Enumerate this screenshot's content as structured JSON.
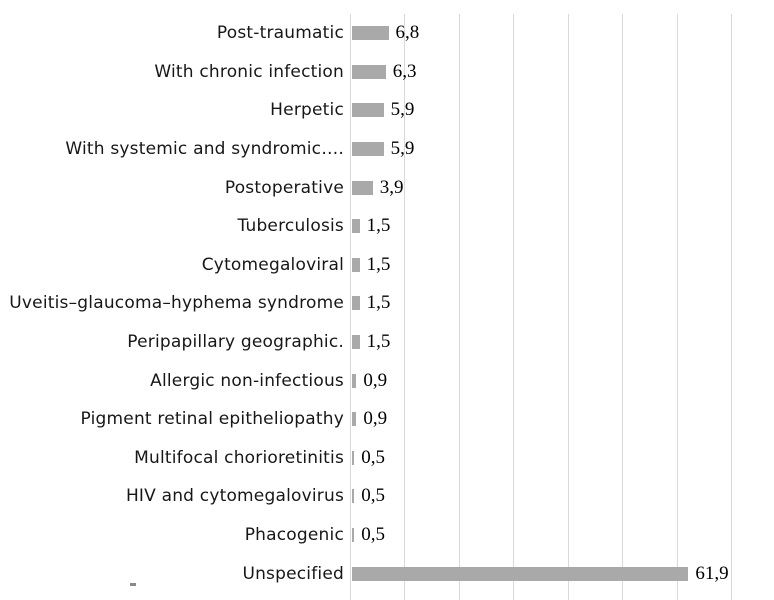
{
  "chart_data": {
    "type": "bar",
    "orientation": "horizontal",
    "title": "",
    "xlabel": "",
    "ylabel": "",
    "xlim": [
      0,
      70
    ],
    "gridline_step": 10,
    "grid": true,
    "legend": false,
    "decimal_separator": ",",
    "categories": [
      "Post-traumatic",
      "With chronic infection",
      "Herpetic",
      "With systemic and syndromic….",
      "Postoperative",
      "Tuberculosis",
      "Cytomegaloviral",
      "Uveitis–glaucoma–hyphema syndrome",
      "Peripapillary geographic.",
      "Allergic non-infectious",
      "Pigment retinal epitheliopathy",
      "Multifocal chorioretinitis",
      "HIV and cytomegalovirus",
      "Phacogenic",
      "Unspecified"
    ],
    "values": [
      6.8,
      6.3,
      5.9,
      5.9,
      3.9,
      1.5,
      1.5,
      1.5,
      1.5,
      0.9,
      0.9,
      0.5,
      0.5,
      0.5,
      61.9
    ],
    "value_labels": [
      "6,8",
      "6,3",
      "5,9",
      "5,9",
      "3,9",
      "1,5",
      "1,5",
      "1,5",
      "1,5",
      "0,9",
      "0,9",
      "0,5",
      "0,5",
      "0,5",
      "61,9"
    ],
    "colors": {
      "bar": "#a9a9a9",
      "gridline": "#d9d9d9",
      "category_text": "#171717",
      "value_text": "#000000",
      "background": "#ffffff"
    }
  }
}
